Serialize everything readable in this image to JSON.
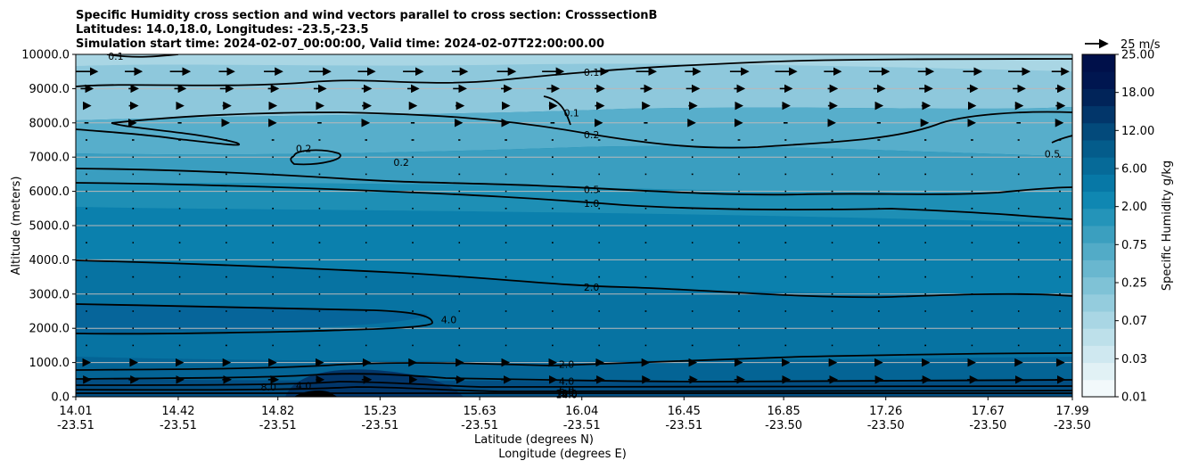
{
  "chart_data": {
    "type": "contour",
    "title_lines": [
      "Specific Humidity cross section and wind vectors parallel to cross section: CrosssectionB",
      "Latitudes: 14.0,18.0, Longitudes: -23.5,-23.5",
      "Simulation start time: 2024-02-07_00:00:00, Valid time: 2024-02-07T22:00:00.00"
    ],
    "ylabel": "Altitude (meters)",
    "xlabel_lat": "Latitude (degrees N)",
    "xlabel_lon": "Longitude (degrees E)",
    "ylim": [
      0,
      10000
    ],
    "y_ticks": [
      "0.0",
      "1000.0",
      "2000.0",
      "3000.0",
      "4000.0",
      "5000.0",
      "6000.0",
      "7000.0",
      "8000.0",
      "9000.0",
      "10000.0"
    ],
    "y_tick_values": [
      0,
      1000,
      2000,
      3000,
      4000,
      5000,
      6000,
      7000,
      8000,
      9000,
      10000
    ],
    "x_lat_ticks": [
      "14.01",
      "14.42",
      "14.82",
      "15.23",
      "15.63",
      "16.04",
      "16.45",
      "16.85",
      "17.26",
      "17.67",
      "17.99"
    ],
    "x_lon_ticks": [
      "-23.51",
      "-23.51",
      "-23.51",
      "-23.51",
      "-23.51",
      "-23.51",
      "-23.51",
      "-23.50",
      "-23.50",
      "-23.50",
      "-23.50"
    ],
    "x_tick_fractions": [
      0,
      0.1028,
      0.2028,
      0.3053,
      0.4053,
      0.5078,
      0.6103,
      0.7103,
      0.8128,
      0.9153,
      1.0
    ],
    "colorbar": {
      "label": "Specific Humidity g/kg",
      "tick_labels": [
        "0.01",
        "0.03",
        "0.07",
        "0.25",
        "0.75",
        "2.00",
        "6.00",
        "12.00",
        "18.00",
        "25.00"
      ],
      "levels": [
        "0.01",
        "0.02",
        "0.03",
        "0.05",
        "0.07",
        "0.10",
        "0.25",
        "0.50",
        "0.75",
        "1.00",
        "2.00",
        "4.00",
        "6.00",
        "8.00",
        "12.00",
        "15.00",
        "18.00",
        "20.00",
        "25.00"
      ],
      "colors": [
        "#f2f9fb",
        "#e1f1f5",
        "#cfe8f0",
        "#bde0ea",
        "#a9d6e4",
        "#94ccdd",
        "#7fc2d6",
        "#69b7cf",
        "#52abc7",
        "#3b9fbf",
        "#2494b9",
        "#0f87b2",
        "#0778a6",
        "#066a98",
        "#045c8b",
        "#034a7b",
        "#02366a",
        "#012459",
        "#001650",
        "#00104a"
      ]
    },
    "wind_reference": "25 m/s",
    "contour_labels": [
      "0.1",
      "0.1",
      "0.1",
      "0.2",
      "0.2",
      "0.2",
      "0.5",
      "0.5",
      "1.0",
      "2.0",
      "4.0",
      "2.0",
      "4.0",
      "8.0",
      "4.0",
      "6.0",
      "8.0",
      "10.0",
      "12.0",
      "14.0"
    ],
    "contour_label_positions_data": [
      {
        "text": "0.1",
        "lat": 14.17,
        "alt": 9950
      },
      {
        "text": "0.1",
        "lat": 16.07,
        "alt": 9480
      },
      {
        "text": "0.1",
        "lat": 15.99,
        "alt": 8300
      },
      {
        "text": "0.2",
        "lat": 14.92,
        "alt": 7250
      },
      {
        "text": "0.2",
        "lat": 15.31,
        "alt": 6850
      },
      {
        "text": "0.2",
        "lat": 16.07,
        "alt": 7650
      },
      {
        "text": "0.5",
        "lat": 16.07,
        "alt": 6050
      },
      {
        "text": "0.5",
        "lat": 17.91,
        "alt": 7100
      },
      {
        "text": "1.0",
        "lat": 16.07,
        "alt": 5650
      },
      {
        "text": "2.0",
        "lat": 16.07,
        "alt": 3200
      },
      {
        "text": "4.0",
        "lat": 15.5,
        "alt": 2250
      },
      {
        "text": "2.0",
        "lat": 15.97,
        "alt": 950
      },
      {
        "text": "4.0",
        "lat": 15.97,
        "alt": 450
      },
      {
        "text": "8.0",
        "lat": 14.78,
        "alt": 280
      },
      {
        "text": "4.0",
        "lat": 14.92,
        "alt": 330
      },
      {
        "text": "6.0",
        "lat": 15.97,
        "alt": 200
      },
      {
        "text": "8.0",
        "lat": 15.97,
        "alt": 130
      },
      {
        "text": "10.0",
        "lat": 15.97,
        "alt": 100
      },
      {
        "text": "12.0",
        "lat": 15.97,
        "alt": 80
      },
      {
        "text": "14.0",
        "lat": 15.97,
        "alt": 60
      }
    ]
  }
}
